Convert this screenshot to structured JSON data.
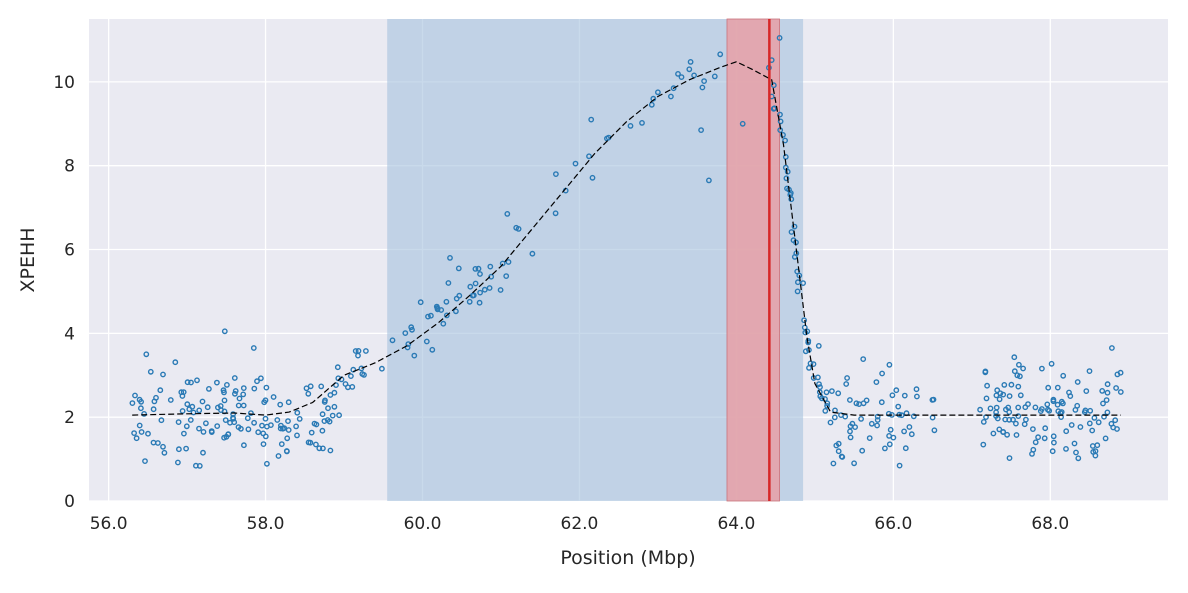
{
  "chart_data": {
    "type": "scatter",
    "title": "",
    "xlabel": "Position (Mbp)",
    "ylabel": "XPEHH",
    "xlim": [
      55.75,
      69.5
    ],
    "ylim": [
      0,
      11.5
    ],
    "x_ticks": [
      56.0,
      58.0,
      60.0,
      62.0,
      64.0,
      66.0,
      68.0
    ],
    "x_tick_labels": [
      "56.0",
      "58.0",
      "60.0",
      "62.0",
      "64.0",
      "66.0",
      "68.0"
    ],
    "y_ticks": [
      0,
      2,
      4,
      6,
      8,
      10
    ],
    "y_tick_labels": [
      "0",
      "2",
      "4",
      "6",
      "8",
      "10"
    ],
    "grid": true,
    "legend": "none",
    "colors": {
      "background": "#eaeaf2",
      "grid": "#ffffff",
      "points": "#2a7ab5",
      "trend": "#000000",
      "blue_region": "#a8c4de",
      "red_region": "#e8a0a6",
      "peak_line": "#d62728"
    },
    "shaded_regions": [
      {
        "name": "candidate region",
        "x_start": 59.55,
        "x_end": 64.85,
        "color": "blue"
      },
      {
        "name": "core region",
        "x_start": 63.88,
        "x_end": 64.55,
        "color": "red"
      }
    ],
    "peak_line_x": 64.42,
    "trend_line": [
      [
        56.3,
        2.05
      ],
      [
        57.0,
        2.08
      ],
      [
        57.6,
        2.1
      ],
      [
        58.0,
        2.05
      ],
      [
        58.3,
        2.12
      ],
      [
        58.6,
        2.35
      ],
      [
        59.0,
        3.0
      ],
      [
        59.4,
        3.3
      ],
      [
        59.8,
        3.7
      ],
      [
        60.2,
        4.25
      ],
      [
        60.6,
        4.9
      ],
      [
        61.0,
        5.6
      ],
      [
        61.4,
        6.5
      ],
      [
        61.8,
        7.4
      ],
      [
        62.2,
        8.3
      ],
      [
        62.6,
        9.05
      ],
      [
        63.0,
        9.65
      ],
      [
        63.4,
        10.05
      ],
      [
        63.8,
        10.35
      ],
      [
        64.0,
        10.48
      ],
      [
        64.2,
        10.3
      ],
      [
        64.45,
        10.05
      ],
      [
        64.6,
        8.5
      ],
      [
        64.75,
        6.2
      ],
      [
        64.9,
        3.9
      ],
      [
        65.0,
        2.8
      ],
      [
        65.2,
        2.12
      ],
      [
        65.5,
        2.05
      ],
      [
        66.5,
        2.05
      ],
      [
        67.5,
        2.05
      ],
      [
        68.5,
        2.05
      ],
      [
        68.9,
        2.05
      ]
    ],
    "notable_points": [
      [
        60.35,
        5.8
      ],
      [
        61.4,
        5.9
      ],
      [
        61.08,
        6.85
      ],
      [
        61.7,
        7.8
      ],
      [
        61.95,
        8.05
      ],
      [
        62.15,
        9.1
      ],
      [
        62.35,
        8.65
      ],
      [
        62.65,
        8.95
      ],
      [
        63.0,
        9.75
      ],
      [
        63.2,
        9.85
      ],
      [
        63.4,
        10.3
      ],
      [
        63.55,
        8.85
      ],
      [
        63.65,
        7.65
      ],
      [
        64.08,
        9.0
      ],
      [
        64.45,
        9.65
      ],
      [
        64.55,
        11.05
      ],
      [
        64.62,
        8.6
      ],
      [
        64.7,
        7.2
      ],
      [
        64.78,
        5.0
      ],
      [
        64.85,
        5.2
      ],
      [
        65.05,
        3.7
      ],
      [
        65.35,
        1.05
      ],
      [
        65.5,
        0.9
      ],
      [
        57.48,
        4.05
      ],
      [
        57.85,
        3.65
      ],
      [
        56.48,
        3.5
      ],
      [
        68.5,
        3.1
      ],
      [
        67.6,
        3.25
      ],
      [
        65.95,
        3.25
      ]
    ],
    "point_count": 450
  }
}
